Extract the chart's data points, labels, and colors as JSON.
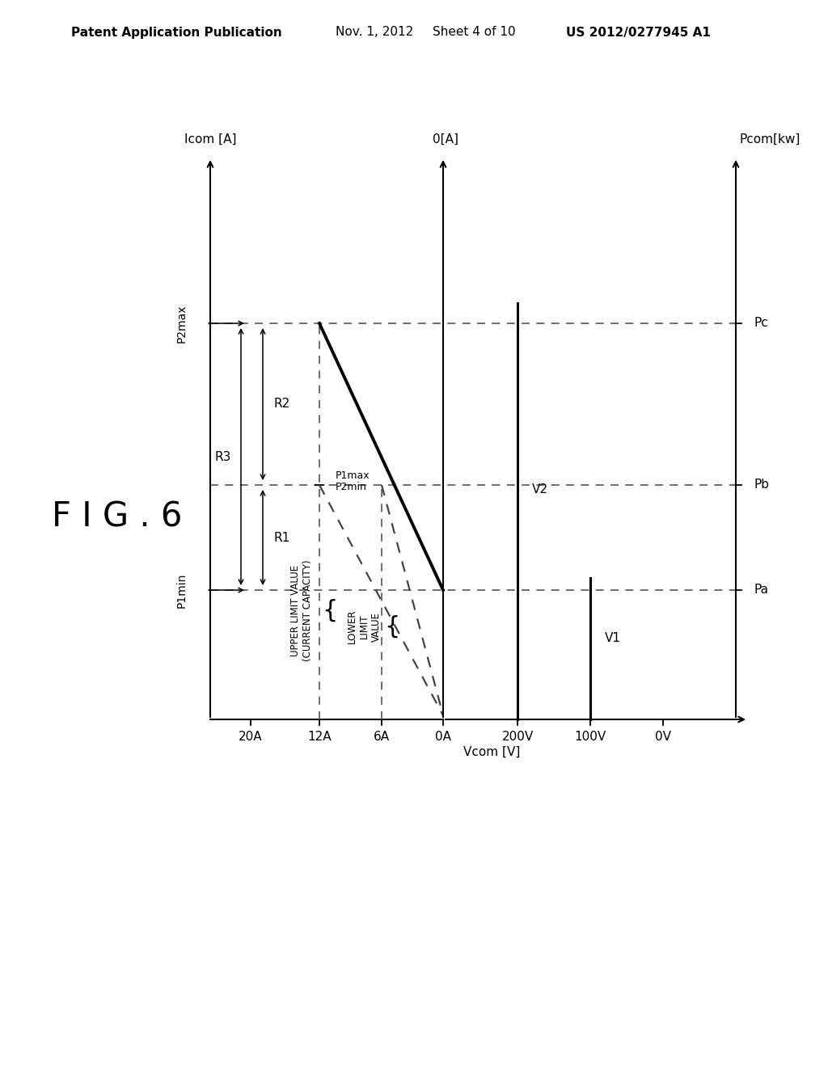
{
  "header_left": "Patent Application Publication",
  "header_mid": "Nov. 1, 2012   Sheet 4 of 10",
  "header_right": "US 2012/0277945 A1",
  "fig_label": "F I G . 6",
  "bg_color": "#ffffff",
  "pcom_label": "Pcom[kw]",
  "icom_label": "Icom [A]",
  "vcom_label": "Vcom [V]",
  "zero_a_label": "0[A]",
  "icom_tick_labels": [
    "20A",
    "12A",
    "6A",
    "0A"
  ],
  "vcom_tick_labels": [
    "200V",
    "100V",
    "0V"
  ],
  "pcom_right_labels": [
    "Pc",
    "Pb",
    "Pa"
  ],
  "upper_limit_label": "UPPER LIMIT VALUE\n(CURRENT CAPACITY)",
  "lower_limit_label": "LOWER\nLIMIT\nVALUE"
}
